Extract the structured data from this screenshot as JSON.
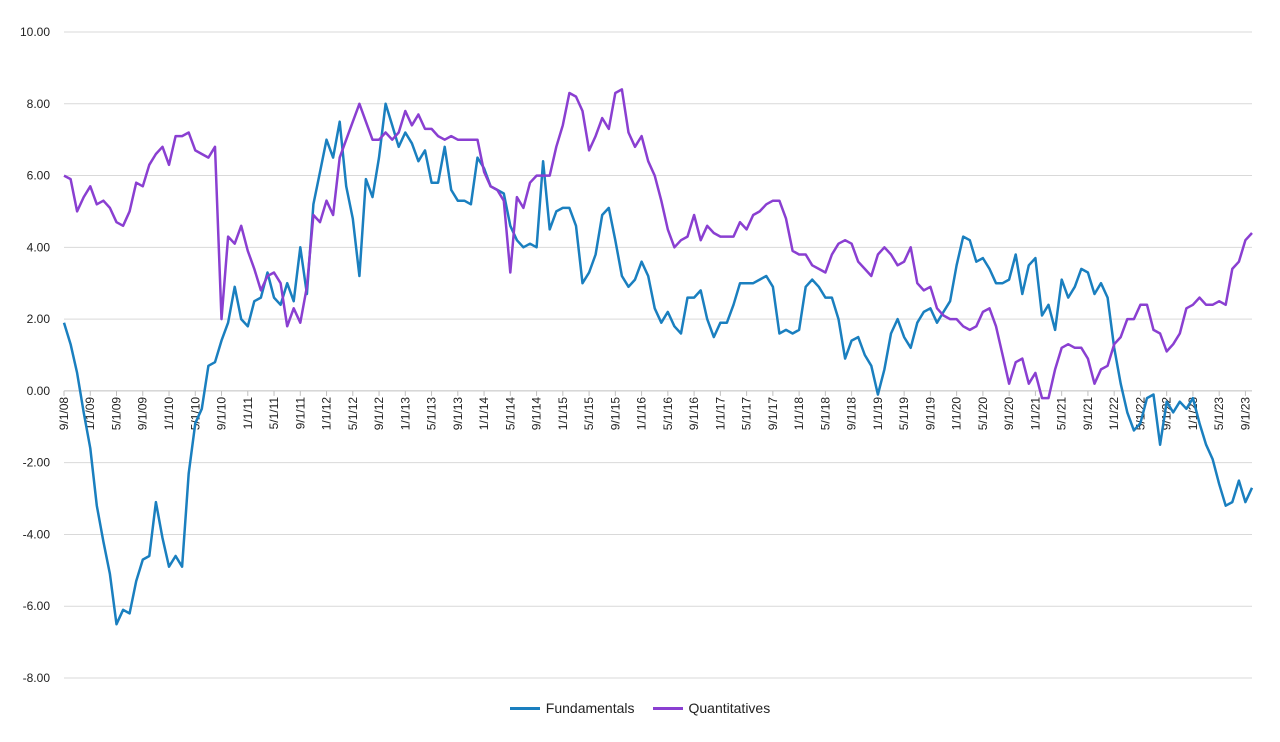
{
  "chart_data": {
    "type": "line",
    "title": "",
    "xlabel": "",
    "ylabel": "",
    "ylim": [
      -8,
      10
    ],
    "ytick_values": [
      -8,
      -6,
      -4,
      -2,
      0,
      2,
      4,
      6,
      8,
      10
    ],
    "ytick_labels": [
      "-8.00",
      "-6.00",
      "-4.00",
      "-2.00",
      "0.00",
      "2.00",
      "4.00",
      "6.00",
      "8.00",
      "10.00"
    ],
    "xtick_labels": [
      "9/1/08",
      "1/1/09",
      "5/1/09",
      "9/1/09",
      "1/1/10",
      "5/1/10",
      "9/1/10",
      "1/1/11",
      "5/1/11",
      "9/1/11",
      "1/1/12",
      "5/1/12",
      "9/1/12",
      "1/1/13",
      "5/1/13",
      "9/1/13",
      "1/1/14",
      "5/1/14",
      "9/1/14",
      "1/1/15",
      "5/1/15",
      "9/1/15",
      "1/1/16",
      "5/1/16",
      "9/1/16",
      "1/1/17",
      "5/1/17",
      "9/1/17",
      "1/1/18",
      "5/1/18",
      "9/1/18",
      "1/1/19",
      "5/1/19",
      "9/1/19",
      "1/1/20",
      "5/1/20",
      "9/1/20",
      "1/1/21",
      "5/1/21",
      "9/1/21",
      "1/1/22",
      "5/1/22",
      "9/1/22",
      "1/1/23",
      "5/1/23",
      "9/1/23"
    ],
    "x_start": "9/1/08",
    "x_frequency": "monthly",
    "grid": true,
    "legend_position": "bottom",
    "series": [
      {
        "name": "Fundamentals",
        "color": "#1a7fbf",
        "values": [
          1.9,
          1.3,
          0.5,
          -0.6,
          -1.6,
          -3.2,
          -4.2,
          -5.1,
          -6.5,
          -6.1,
          -6.2,
          -5.3,
          -4.7,
          -4.6,
          -3.1,
          -4.1,
          -4.9,
          -4.6,
          -4.9,
          -2.3,
          -0.9,
          -0.5,
          0.7,
          0.8,
          1.4,
          1.9,
          2.9,
          2.0,
          1.8,
          2.5,
          2.6,
          3.3,
          2.6,
          2.4,
          3.0,
          2.5,
          4.0,
          2.7,
          5.2,
          6.1,
          7.0,
          6.5,
          7.5,
          5.7,
          4.8,
          3.2,
          5.9,
          5.4,
          6.5,
          8.0,
          7.4,
          6.8,
          7.2,
          6.9,
          6.4,
          6.7,
          5.8,
          5.8,
          6.8,
          5.6,
          5.3,
          5.3,
          5.2,
          6.5,
          6.2,
          5.7,
          5.6,
          5.5,
          4.6,
          4.2,
          4.0,
          4.1,
          4.0,
          6.4,
          4.5,
          5.0,
          5.1,
          5.1,
          4.6,
          3.0,
          3.3,
          3.8,
          4.9,
          5.1,
          4.2,
          3.2,
          2.9,
          3.1,
          3.6,
          3.2,
          2.3,
          1.9,
          2.2,
          1.8,
          1.6,
          2.6,
          2.6,
          2.8,
          2.0,
          1.5,
          1.9,
          1.9,
          2.4,
          3.0,
          3.0,
          3.0,
          3.1,
          3.2,
          2.9,
          1.6,
          1.7,
          1.6,
          1.7,
          2.9,
          3.1,
          2.9,
          2.6,
          2.6,
          2.0,
          0.9,
          1.4,
          1.5,
          1.0,
          0.7,
          -0.1,
          0.6,
          1.6,
          2.0,
          1.5,
          1.2,
          1.9,
          2.2,
          2.3,
          1.9,
          2.2,
          2.5,
          3.5,
          4.3,
          4.2,
          3.6,
          3.7,
          3.4,
          3.0,
          3.0,
          3.1,
          3.8,
          2.7,
          3.5,
          3.7,
          2.1,
          2.4,
          1.7,
          3.1,
          2.6,
          2.9,
          3.4,
          3.3,
          2.7,
          3.0,
          2.6,
          1.2,
          0.2,
          -0.6,
          -1.1,
          -0.9,
          -0.2,
          -0.1,
          -1.5,
          -0.3,
          -0.6,
          -0.3,
          -0.5,
          -0.2,
          -0.9,
          -1.5,
          -1.9,
          -2.6,
          -3.2,
          -3.1,
          -2.5,
          -3.1,
          -2.7
        ]
      },
      {
        "name": "Quantitatives",
        "color": "#8a3fd1",
        "values": [
          6.0,
          5.9,
          5.0,
          5.4,
          5.7,
          5.2,
          5.3,
          5.1,
          4.7,
          4.6,
          5.0,
          5.8,
          5.7,
          6.3,
          6.6,
          6.8,
          6.3,
          7.1,
          7.1,
          7.2,
          6.7,
          6.6,
          6.5,
          6.8,
          2.0,
          4.3,
          4.1,
          4.6,
          3.9,
          3.4,
          2.8,
          3.2,
          3.3,
          3.0,
          1.8,
          2.3,
          1.9,
          2.9,
          4.9,
          4.7,
          5.3,
          4.9,
          6.5,
          7.0,
          7.5,
          8.0,
          7.5,
          7.0,
          7.0,
          7.2,
          7.0,
          7.2,
          7.8,
          7.4,
          7.7,
          7.3,
          7.3,
          7.1,
          7.0,
          7.1,
          7.0,
          7.0,
          7.0,
          7.0,
          6.1,
          5.7,
          5.6,
          5.3,
          3.3,
          5.4,
          5.1,
          5.8,
          6.0,
          6.0,
          6.0,
          6.8,
          7.4,
          8.3,
          8.2,
          7.8,
          6.7,
          7.1,
          7.6,
          7.3,
          8.3,
          8.4,
          7.2,
          6.8,
          7.1,
          6.4,
          6.0,
          5.3,
          4.5,
          4.0,
          4.2,
          4.3,
          4.9,
          4.2,
          4.6,
          4.4,
          4.3,
          4.3,
          4.3,
          4.7,
          4.5,
          4.9,
          5.0,
          5.2,
          5.3,
          5.3,
          4.8,
          3.9,
          3.8,
          3.8,
          3.5,
          3.4,
          3.3,
          3.8,
          4.1,
          4.2,
          4.1,
          3.6,
          3.4,
          3.2,
          3.8,
          4.0,
          3.8,
          3.5,
          3.6,
          4.0,
          3.0,
          2.8,
          2.9,
          2.3,
          2.1,
          2.0,
          2.0,
          1.8,
          1.7,
          1.8,
          2.2,
          2.3,
          1.8,
          1.0,
          0.2,
          0.8,
          0.9,
          0.2,
          0.5,
          -0.2,
          -0.2,
          0.6,
          1.2,
          1.3,
          1.2,
          1.2,
          0.9,
          0.2,
          0.6,
          0.7,
          1.3,
          1.5,
          2.0,
          2.0,
          2.4,
          2.4,
          1.7,
          1.6,
          1.1,
          1.3,
          1.6,
          2.3,
          2.4,
          2.6,
          2.4,
          2.4,
          2.5,
          2.4,
          3.4,
          3.6,
          4.2,
          4.4
        ]
      }
    ]
  }
}
